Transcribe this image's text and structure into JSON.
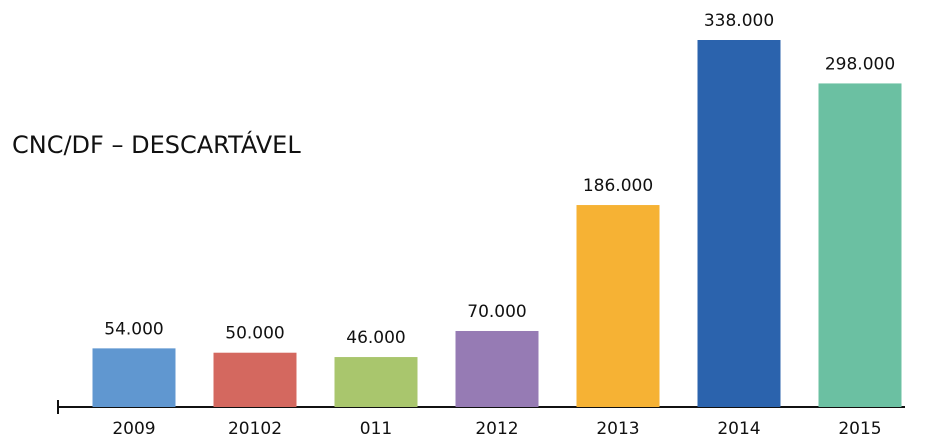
{
  "chart_data": {
    "type": "bar",
    "title": "CNC/DF – DESCARTÁVEL",
    "categories": [
      "2009",
      "20102",
      "011",
      "2012",
      "2013",
      "2014",
      "2015"
    ],
    "values": [
      54000,
      50000,
      46000,
      70000,
      186000,
      338000,
      298000
    ],
    "value_labels": [
      "54.000",
      "50.000",
      "46.000",
      "70.000",
      "186.000",
      "338.000",
      "298.000"
    ],
    "colors": [
      "#6097d0",
      "#d4685f",
      "#a9c66d",
      "#967bb4",
      "#f6b234",
      "#2b63ad",
      "#6bc0a2"
    ]
  }
}
